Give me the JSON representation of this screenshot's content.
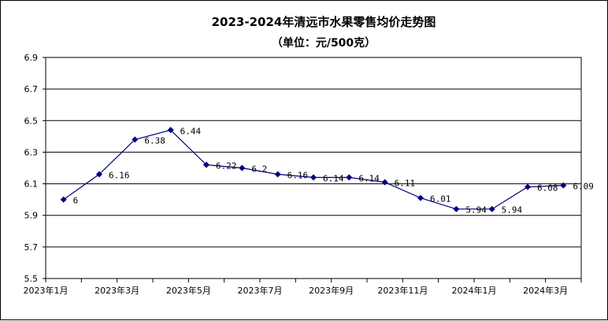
{
  "chart_data": {
    "type": "line",
    "title": "2023-2024年清远市水果零售均价走势图",
    "subtitle": "（单位：元/500克）",
    "xlabel": "",
    "ylabel": "",
    "ylim": [
      5.5,
      6.9
    ],
    "yticks": [
      "6.9",
      "6.7",
      "6.5",
      "6.3",
      "6.1",
      "5.9",
      "5.7",
      "5.5"
    ],
    "xtick_labels": [
      "2023年1月",
      "2023年3月",
      "2023年5月",
      "2023年7月",
      "2023年9月",
      "2023年11月",
      "2024年1月",
      "2024年3月"
    ],
    "grid": true,
    "legend": "none",
    "series": [
      {
        "color": "#000080",
        "values": [
          6,
          6.16,
          6.38,
          6.44,
          6.22,
          6.2,
          6.16,
          6.14,
          6.14,
          6.11,
          6.01,
          5.94,
          5.94,
          6.08,
          6.09
        ],
        "labels": [
          "6",
          "6.16",
          "6.38",
          "6.44",
          "6.22",
          "6.2",
          "6.16",
          "6.14",
          "6.14",
          "6.11",
          "6.01",
          "5.94",
          "5.94",
          "6.08",
          "6.09"
        ]
      }
    ]
  }
}
